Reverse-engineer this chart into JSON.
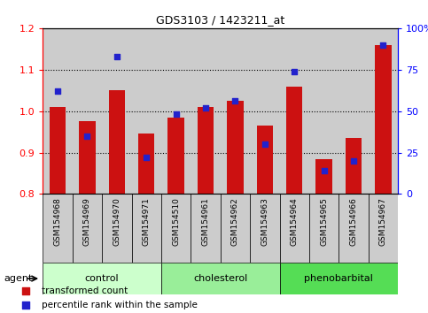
{
  "title": "GDS3103 / 1423211_at",
  "samples": [
    "GSM154968",
    "GSM154969",
    "GSM154970",
    "GSM154971",
    "GSM154510",
    "GSM154961",
    "GSM154962",
    "GSM154963",
    "GSM154964",
    "GSM154965",
    "GSM154966",
    "GSM154967"
  ],
  "red_values": [
    1.01,
    0.975,
    1.05,
    0.945,
    0.985,
    1.01,
    1.025,
    0.965,
    1.06,
    0.885,
    0.935,
    1.16
  ],
  "blue_values": [
    0.62,
    0.35,
    0.83,
    0.22,
    0.48,
    0.52,
    0.56,
    0.3,
    0.74,
    0.14,
    0.2,
    0.9
  ],
  "groups": [
    {
      "label": "control",
      "indices": [
        0,
        1,
        2,
        3
      ]
    },
    {
      "label": "cholesterol",
      "indices": [
        4,
        5,
        6,
        7
      ]
    },
    {
      "label": "phenobarbital",
      "indices": [
        8,
        9,
        10,
        11
      ]
    }
  ],
  "group_colors": [
    "#ccffcc",
    "#99ee99",
    "#55dd55"
  ],
  "ylim_left": [
    0.8,
    1.2
  ],
  "ylim_right": [
    0,
    100
  ],
  "bar_color": "#cc1111",
  "dot_color": "#2222cc",
  "bar_bottom": 0.8,
  "cell_bg_color": "#cccccc",
  "chart_bg_color": "#ffffff",
  "grid_lines": [
    0.9,
    1.0,
    1.1
  ],
  "left_ticks": [
    0.8,
    0.9,
    1.0,
    1.1,
    1.2
  ],
  "right_ticks": [
    0,
    25,
    50,
    75,
    100
  ],
  "right_tick_labels": [
    "0",
    "25",
    "50",
    "75",
    "100%"
  ]
}
